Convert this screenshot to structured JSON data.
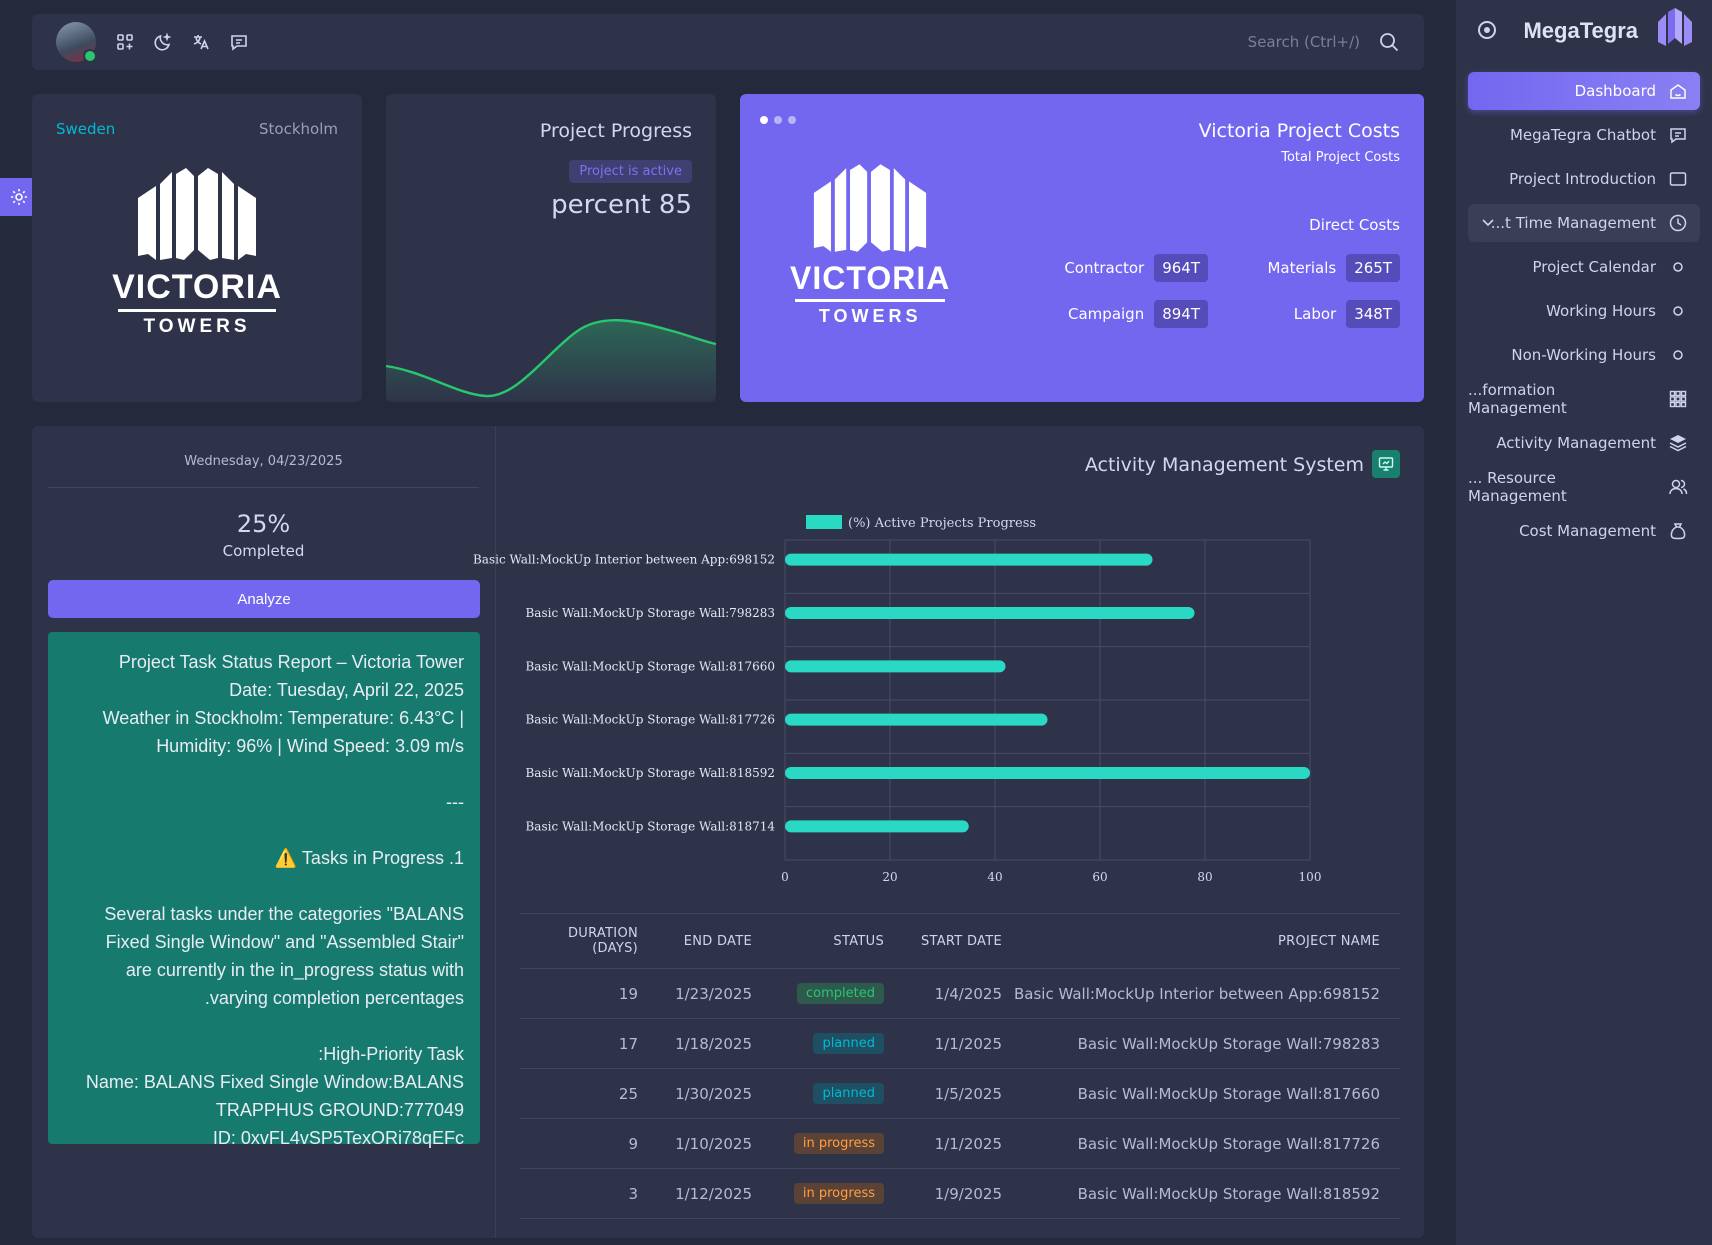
{
  "topbar": {
    "search_placeholder": "Search (Ctrl+/)",
    "icons": [
      "grid-icon",
      "moon-icon",
      "translate-icon",
      "message-icon"
    ]
  },
  "location": {
    "country": "Sweden",
    "city": "Stockholm",
    "logo_word1": "VICTORIA",
    "logo_word2": "TOWERS"
  },
  "progress": {
    "title": "Project Progress",
    "badge": "Project is active",
    "value": "percent 85"
  },
  "costs": {
    "title": "Victoria Project Costs",
    "subtitle": "Total Project Costs",
    "direct_label": "Direct Costs",
    "items": [
      {
        "label": "Contractor",
        "value": "964T"
      },
      {
        "label": "Materials",
        "value": "265T"
      },
      {
        "label": "Campaign",
        "value": "894T"
      },
      {
        "label": "Labor",
        "value": "348T"
      }
    ]
  },
  "summary": {
    "date": "Wednesday, 04/23/2025",
    "percent": "25%",
    "completed_label": "Completed",
    "analyze_label": "Analyze"
  },
  "report": {
    "l1": "Project Task Status Report – Victoria Tower",
    "l2": "Date: Tuesday, April 22, 2025",
    "l3": "Weather in Stockholm: Temperature: 6.43°C |",
    "l4": "Humidity: 96% | Wind Speed: 3.09 m/s",
    "l5": "---",
    "l6": "⚠️ Tasks in Progress .1",
    "l7": "Several tasks under the categories \"BALANS",
    "l8": "Fixed Single Window\" and \"Assembled Stair\"",
    "l9": "are currently in the in_progress status with",
    "l10": ".varying completion percentages",
    "l11": ":High-Priority Task",
    "l12": "Name: BALANS Fixed Single Window:BALANS",
    "l13": "TRAPPHUS GROUND:777049",
    "l14": "ID: 0xvFL4vSP5TexORi78qEFc"
  },
  "activity": {
    "title": "Activity Management System"
  },
  "chart_data": {
    "type": "bar",
    "orientation": "horizontal",
    "legend": "(%) Active Projects Progress",
    "legend_position": "top",
    "categories": [
      "Basic Wall:MockUp Interior between App:698152",
      "Basic Wall:MockUp Storage Wall:798283",
      "Basic Wall:MockUp Storage Wall:817660",
      "Basic Wall:MockUp Storage Wall:817726",
      "Basic Wall:MockUp Storage Wall:818592",
      "Basic Wall:MockUp Storage Wall:818714"
    ],
    "values": [
      70,
      78,
      42,
      50,
      100,
      35
    ],
    "xlim": [
      0,
      100
    ],
    "xticks": [
      "0",
      "20",
      "40",
      "60",
      "80",
      "100"
    ],
    "grid": true,
    "color": "#2ad9c4"
  },
  "table": {
    "headers": {
      "duration": "DURATION (DAYS)",
      "end": "END DATE",
      "status": "STATUS",
      "start": "START DATE",
      "name": "PROJECT NAME"
    },
    "rows": [
      {
        "duration": "19",
        "end": "1/23/2025",
        "status": "completed",
        "start": "1/4/2025",
        "name": "Basic Wall:MockUp Interior between App:698152"
      },
      {
        "duration": "17",
        "end": "1/18/2025",
        "status": "planned",
        "start": "1/1/2025",
        "name": "Basic Wall:MockUp Storage Wall:798283"
      },
      {
        "duration": "25",
        "end": "1/30/2025",
        "status": "planned",
        "start": "1/5/2025",
        "name": "Basic Wall:MockUp Storage Wall:817660"
      },
      {
        "duration": "9",
        "end": "1/10/2025",
        "status": "in progress",
        "start": "1/1/2025",
        "name": "Basic Wall:MockUp Storage Wall:817726"
      },
      {
        "duration": "3",
        "end": "1/12/2025",
        "status": "in progress",
        "start": "1/9/2025",
        "name": "Basic Wall:MockUp Storage Wall:818592"
      }
    ]
  },
  "sidebar": {
    "brand": "MegaTegra",
    "items": [
      {
        "label": "Dashboard",
        "icon": "home-icon"
      },
      {
        "label": "MegaTegra Chatbot",
        "icon": "chat-icon"
      },
      {
        "label": "Project Introduction",
        "icon": "window-icon"
      },
      {
        "label": "...t Time Management",
        "icon": "clock-icon"
      },
      {
        "label": "Project Calendar",
        "icon": "circle-icon"
      },
      {
        "label": "Working Hours",
        "icon": "circle-icon"
      },
      {
        "label": "Non-Working Hours",
        "icon": "circle-icon"
      },
      {
        "label": "...formation Management",
        "icon": "grid-icon"
      },
      {
        "label": "Activity Management",
        "icon": "stack-icon"
      },
      {
        "label": "... Resource Management",
        "icon": "users-icon"
      },
      {
        "label": "Cost Management",
        "icon": "bag-icon"
      }
    ]
  }
}
